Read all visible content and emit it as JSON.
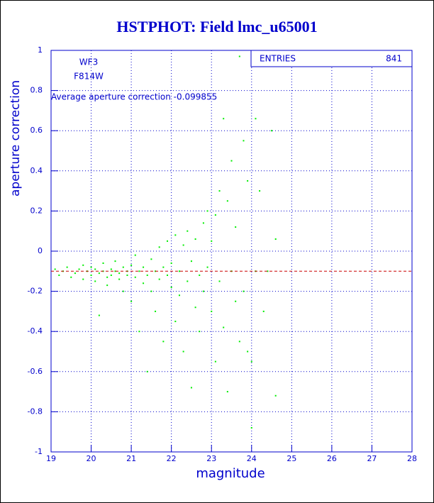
{
  "chart_data": {
    "type": "scatter",
    "title": "HSTPHOT: Field lmc_u65001",
    "x_label": "magnitude",
    "y_label": "aperture correction",
    "labels": [
      "WF3",
      "F814W"
    ],
    "annotation": "Average aperture correction -0.099855",
    "mean": -0.099855,
    "mean_color": "#cc0000",
    "entries_label": "ENTRIES",
    "entries": 841,
    "color": "#00ee00",
    "grid": true,
    "xlim": [
      19,
      28
    ],
    "ylim": [
      -1,
      1
    ],
    "xticks": [
      19,
      20,
      21,
      22,
      23,
      24,
      25,
      26,
      27,
      28
    ],
    "yticks": [
      -1,
      -0.8,
      -0.6,
      -0.4,
      -0.2,
      0,
      0.2,
      0.4,
      0.6,
      0.8,
      1
    ],
    "x": [
      19.1,
      19.2,
      19.3,
      19.4,
      19.5,
      19.6,
      19.7,
      19.8,
      19.8,
      19.9,
      20.0,
      20.0,
      20.1,
      20.1,
      20.2,
      20.2,
      20.3,
      20.3,
      20.4,
      20.4,
      20.5,
      20.5,
      20.6,
      20.6,
      20.7,
      20.7,
      20.8,
      20.8,
      20.9,
      20.9,
      21.0,
      21.0,
      21.1,
      21.1,
      21.2,
      21.2,
      21.3,
      21.3,
      21.4,
      21.4,
      21.5,
      21.5,
      21.6,
      21.6,
      21.7,
      21.7,
      21.8,
      21.8,
      21.9,
      21.9,
      22.0,
      22.0,
      22.1,
      22.1,
      22.2,
      22.2,
      22.3,
      22.3,
      22.4,
      22.4,
      22.5,
      22.5,
      22.6,
      22.6,
      22.7,
      22.7,
      22.8,
      22.8,
      22.9,
      22.9,
      23.0,
      23.0,
      23.1,
      23.1,
      23.2,
      23.2,
      23.3,
      23.3,
      23.4,
      23.4,
      23.5,
      23.5,
      23.6,
      23.6,
      23.7,
      23.7,
      23.8,
      23.8,
      23.9,
      23.9,
      24.0,
      24.1,
      24.1,
      24.2,
      24.3,
      24.4,
      24.5,
      24.6,
      24.6,
      24.0
    ],
    "y": [
      -0.09,
      -0.12,
      -0.1,
      -0.08,
      -0.13,
      -0.11,
      -0.09,
      -0.07,
      -0.14,
      -0.1,
      -0.12,
      -0.08,
      -0.15,
      -0.09,
      -0.11,
      -0.32,
      -0.1,
      -0.06,
      -0.13,
      -0.17,
      -0.09,
      -0.12,
      -0.1,
      -0.05,
      -0.14,
      -0.11,
      -0.08,
      -0.2,
      -0.12,
      -0.1,
      -0.07,
      -0.25,
      -0.13,
      -0.02,
      -0.1,
      -0.4,
      -0.16,
      -0.08,
      -0.6,
      -0.12,
      -0.04,
      -0.2,
      -0.1,
      -0.3,
      -0.14,
      0.02,
      -0.08,
      -0.45,
      -0.12,
      0.05,
      -0.18,
      -0.06,
      -0.35,
      0.08,
      -0.1,
      -0.22,
      0.03,
      -0.5,
      -0.15,
      0.1,
      -0.05,
      -0.68,
      -0.28,
      0.06,
      -0.12,
      -0.4,
      0.14,
      -0.2,
      -0.08,
      0.2,
      -0.3,
      0.05,
      -0.55,
      0.18,
      -0.15,
      0.3,
      -0.38,
      0.66,
      -0.7,
      0.25,
      -0.1,
      0.45,
      -0.25,
      0.12,
      0.97,
      -0.45,
      0.55,
      -0.2,
      -0.5,
      0.35,
      -0.55,
      0.66,
      -0.1,
      0.3,
      -0.3,
      -0.1,
      0.6,
      -0.72,
      0.06,
      -0.88
    ]
  }
}
